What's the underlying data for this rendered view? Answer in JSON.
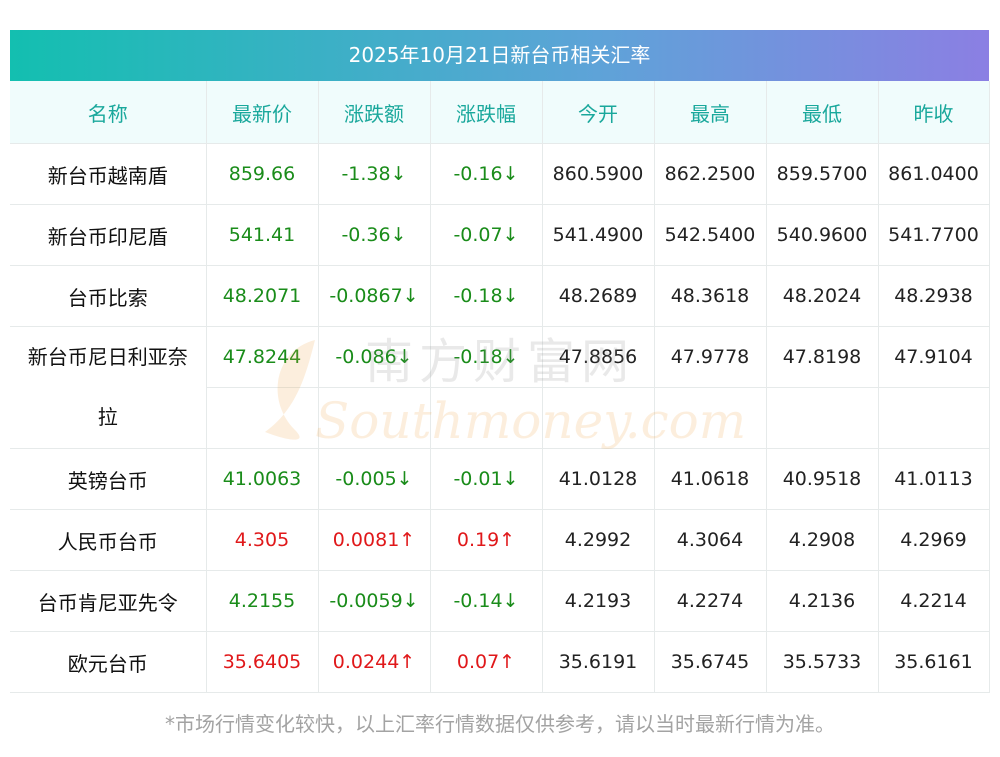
{
  "title": "2025年10月21日新台币相关汇率",
  "headers": [
    "名称",
    "最新价",
    "涨跌额",
    "涨跌幅",
    "今开",
    "最高",
    "最低",
    "昨收"
  ],
  "rows": [
    {
      "name": "新台币越南盾",
      "latest": "859.66",
      "chg": "-1.38↓",
      "pct": "-0.16↓",
      "open": "860.5900",
      "high": "862.2500",
      "low": "859.5700",
      "prev": "861.0400",
      "dir": "down"
    },
    {
      "name": "新台币印尼盾",
      "latest": "541.41",
      "chg": "-0.36↓",
      "pct": "-0.07↓",
      "open": "541.4900",
      "high": "542.5400",
      "low": "540.9600",
      "prev": "541.7700",
      "dir": "down"
    },
    {
      "name": "台币比索",
      "latest": "48.2071",
      "chg": "-0.0867↓",
      "pct": "-0.18↓",
      "open": "48.2689",
      "high": "48.3618",
      "low": "48.2024",
      "prev": "48.2938",
      "dir": "down"
    },
    {
      "name_line1": "新台币尼日利亚奈",
      "name_line2": "拉",
      "latest": "47.8244",
      "chg": "-0.086↓",
      "pct": "-0.18↓",
      "open": "47.8856",
      "high": "47.9778",
      "low": "47.8198",
      "prev": "47.9104",
      "dir": "down"
    },
    {
      "name": "英镑台币",
      "latest": "41.0063",
      "chg": "-0.005↓",
      "pct": "-0.01↓",
      "open": "41.0128",
      "high": "41.0618",
      "low": "40.9518",
      "prev": "41.0113",
      "dir": "down"
    },
    {
      "name": "人民币台币",
      "latest": "4.305",
      "chg": "0.0081↑",
      "pct": "0.19↑",
      "open": "4.2992",
      "high": "4.3064",
      "low": "4.2908",
      "prev": "4.2969",
      "dir": "up"
    },
    {
      "name": "台币肯尼亚先令",
      "latest": "4.2155",
      "chg": "-0.0059↓",
      "pct": "-0.14↓",
      "open": "4.2193",
      "high": "4.2274",
      "low": "4.2136",
      "prev": "4.2214",
      "dir": "down"
    },
    {
      "name": "欧元台币",
      "latest": "35.6405",
      "chg": "0.0244↑",
      "pct": "0.07↑",
      "open": "35.6191",
      "high": "35.6745",
      "low": "35.5733",
      "prev": "35.6161",
      "dir": "up"
    }
  ],
  "watermark": {
    "cn": "南方财富网",
    "en": "Southmoney.com"
  },
  "footnote": "*市场行情变化较快，以上汇率行情数据仅供参考，请以当时最新行情为准。",
  "colors": {
    "up": "#e0181a",
    "down": "#1a8c1a",
    "header_text": "#1aa89c"
  }
}
